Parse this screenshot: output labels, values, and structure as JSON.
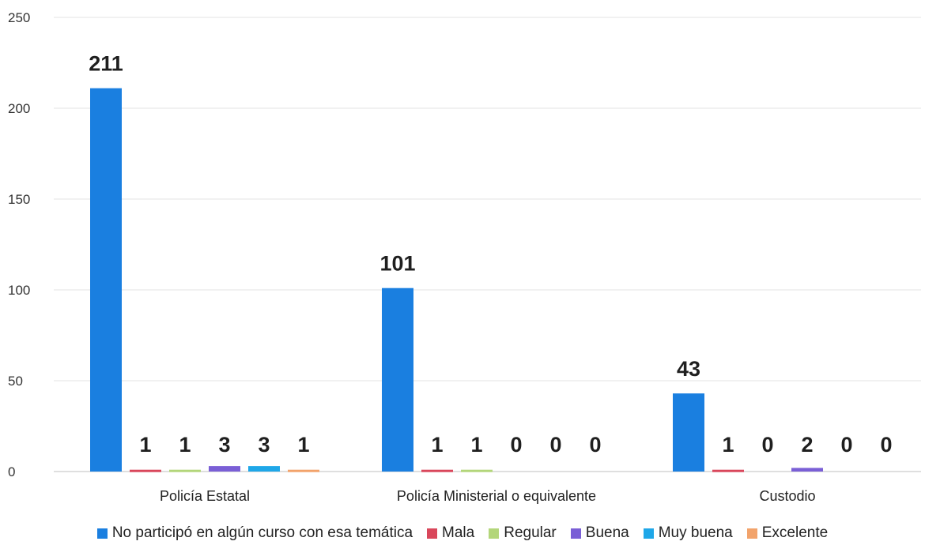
{
  "chart_data": {
    "type": "bar",
    "categories": [
      "Policía Estatal",
      "Policía Ministerial o equivalente",
      "Custodio"
    ],
    "series": [
      {
        "name": "No participó en algún curso con esa temática",
        "color": "#1a7fe0",
        "values": [
          211,
          101,
          43
        ]
      },
      {
        "name": "Mala",
        "color": "#d9475b",
        "values": [
          1,
          1,
          1
        ]
      },
      {
        "name": "Regular",
        "color": "#b3d67a",
        "values": [
          1,
          1,
          0
        ]
      },
      {
        "name": "Buena",
        "color": "#7a5fd6",
        "values": [
          3,
          0,
          2
        ]
      },
      {
        "name": "Muy buena",
        "color": "#1fa7e8",
        "values": [
          3,
          0,
          0
        ]
      },
      {
        "name": "Excelente",
        "color": "#f2a36b",
        "values": [
          1,
          0,
          0
        ]
      }
    ],
    "ylim": [
      0,
      250
    ],
    "yticks": [
      0,
      50,
      100,
      150,
      200,
      250
    ],
    "grid": true,
    "legend_position": "bottom",
    "data_labels": true
  }
}
